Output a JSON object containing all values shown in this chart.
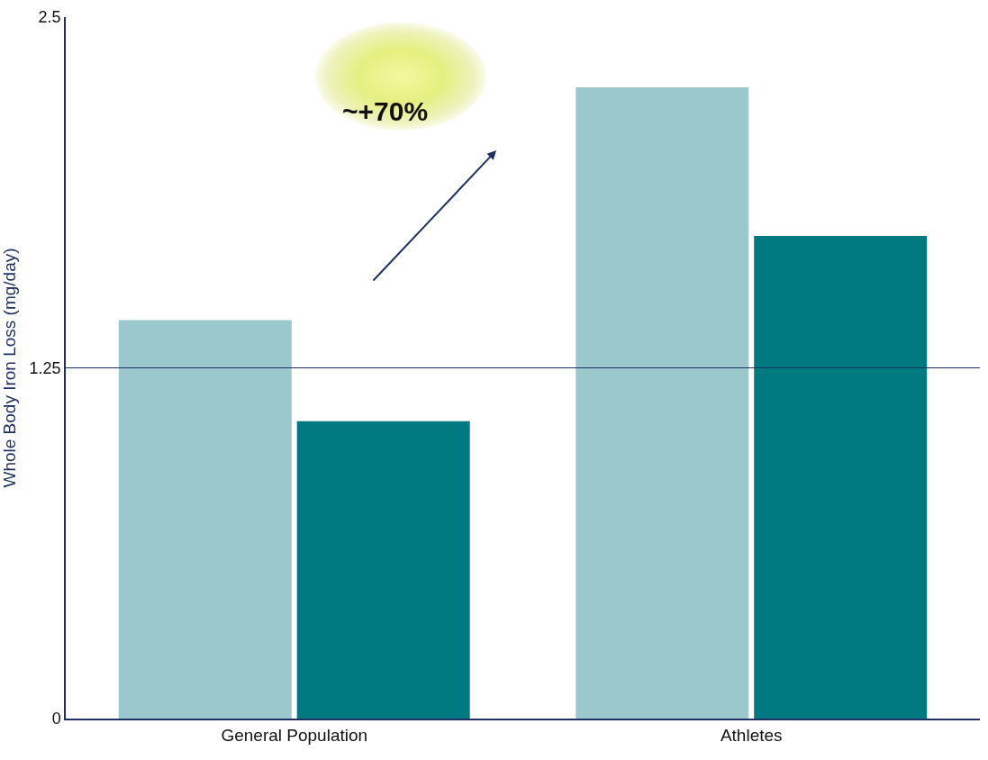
{
  "chart_data": {
    "type": "bar",
    "ylabel": "Whole Body Iron Loss (mg/day)",
    "categories": [
      "General Population",
      "Athletes"
    ],
    "series": [
      {
        "color": "#9bc8cc",
        "values": [
          1.42,
          2.25
        ]
      },
      {
        "color": "#007980",
        "values": [
          1.06,
          1.72
        ]
      }
    ],
    "ylim": [
      0,
      2.5
    ],
    "yticks": [
      0,
      1.25,
      2.5
    ],
    "ref_lines": [
      {
        "axis": "y",
        "value": 1.25,
        "color": "#1f3164"
      }
    ],
    "annotations": [
      "~+70%"
    ]
  }
}
